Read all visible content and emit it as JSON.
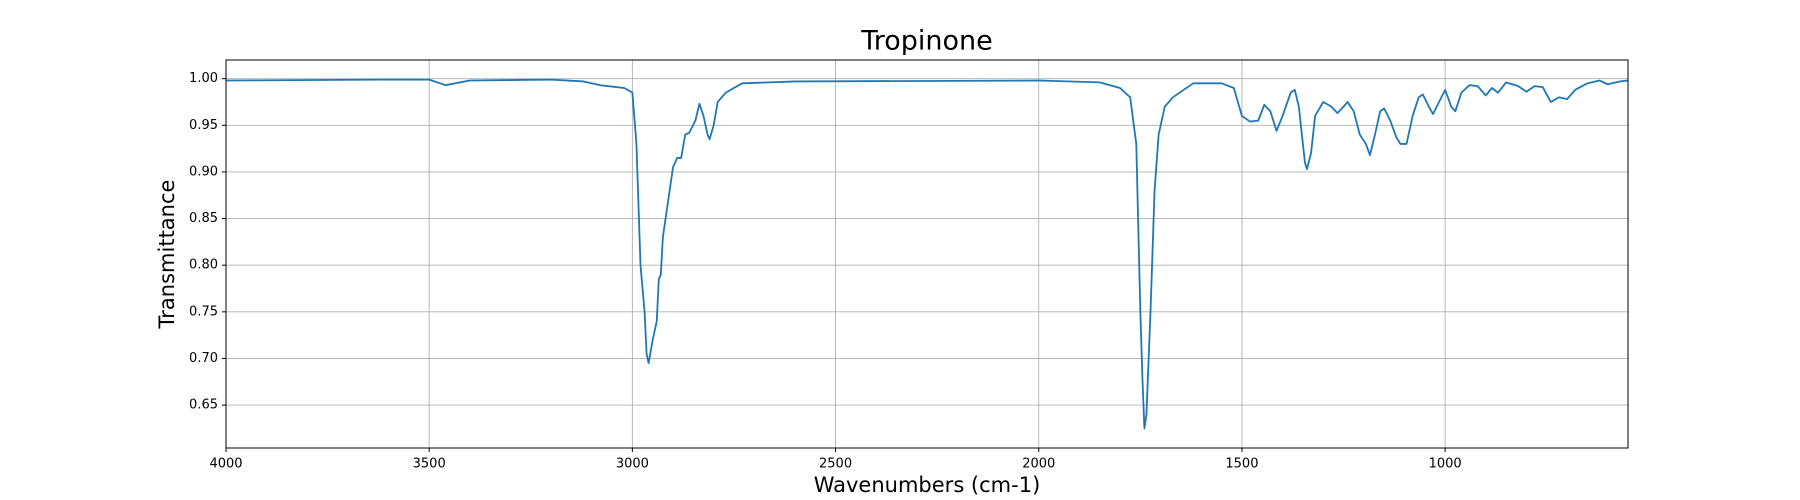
{
  "chart_data": {
    "type": "line",
    "title": "Tropinone",
    "x_label": "Wavenumbers (cm-1)",
    "y_label": "Transmittance",
    "color": "#1f77b4",
    "grid": true,
    "xlim": [
      4000,
      550
    ],
    "ylim": [
      0.604,
      1.02
    ],
    "xticks": [
      4000,
      3500,
      3000,
      2500,
      2000,
      1500,
      1000
    ],
    "yticks": [
      0.65,
      {
        "value": 0.7,
        "label": "0.70"
      },
      {
        "value": 0.75,
        "label": "0.75"
      },
      {
        "value": 0.8,
        "label": "0.80"
      },
      0.85,
      {
        "value": 0.9,
        "label": "0.90"
      },
      0.95,
      {
        "value": 1.0,
        "label": "1.00"
      }
    ],
    "x": [
      4000,
      3600,
      3500,
      3460,
      3400,
      3200,
      3120,
      3080,
      3020,
      3000,
      2990,
      2980,
      2970,
      2965,
      2960,
      2950,
      2940,
      2935,
      2930,
      2925,
      2915,
      2900,
      2890,
      2880,
      2870,
      2860,
      2845,
      2835,
      2825,
      2815,
      2810,
      2800,
      2790,
      2770,
      2730,
      2600,
      2000,
      1850,
      1800,
      1775,
      1760,
      1750,
      1745,
      1740,
      1735,
      1725,
      1715,
      1705,
      1690,
      1670,
      1620,
      1550,
      1520,
      1500,
      1480,
      1460,
      1445,
      1430,
      1415,
      1400,
      1380,
      1370,
      1360,
      1345,
      1340,
      1330,
      1320,
      1300,
      1280,
      1265,
      1250,
      1240,
      1225,
      1210,
      1195,
      1185,
      1170,
      1160,
      1150,
      1135,
      1120,
      1110,
      1095,
      1080,
      1065,
      1055,
      1040,
      1030,
      1015,
      1000,
      985,
      975,
      960,
      940,
      920,
      900,
      885,
      870,
      850,
      820,
      800,
      780,
      760,
      740,
      720,
      700,
      680,
      650,
      620,
      600,
      570,
      550
    ],
    "values": [
      0.998,
      0.999,
      0.999,
      0.993,
      0.998,
      0.999,
      0.997,
      0.993,
      0.99,
      0.985,
      0.93,
      0.8,
      0.75,
      0.705,
      0.695,
      0.72,
      0.74,
      0.785,
      0.79,
      0.83,
      0.86,
      0.905,
      0.915,
      0.915,
      0.94,
      0.942,
      0.955,
      0.973,
      0.96,
      0.94,
      0.935,
      0.95,
      0.975,
      0.985,
      0.995,
      0.997,
      0.998,
      0.996,
      0.99,
      0.98,
      0.93,
      0.75,
      0.68,
      0.625,
      0.64,
      0.75,
      0.88,
      0.94,
      0.97,
      0.98,
      0.995,
      0.995,
      0.99,
      0.96,
      0.954,
      0.955,
      0.972,
      0.965,
      0.944,
      0.96,
      0.985,
      0.988,
      0.97,
      0.91,
      0.903,
      0.92,
      0.96,
      0.975,
      0.97,
      0.963,
      0.97,
      0.975,
      0.965,
      0.94,
      0.93,
      0.918,
      0.945,
      0.965,
      0.968,
      0.955,
      0.937,
      0.93,
      0.93,
      0.96,
      0.98,
      0.983,
      0.97,
      0.962,
      0.975,
      0.988,
      0.97,
      0.965,
      0.985,
      0.993,
      0.992,
      0.982,
      0.99,
      0.985,
      0.996,
      0.992,
      0.986,
      0.992,
      0.991,
      0.975,
      0.98,
      0.978,
      0.988,
      0.995,
      0.998,
      0.994,
      0.997,
      0.998
    ]
  }
}
